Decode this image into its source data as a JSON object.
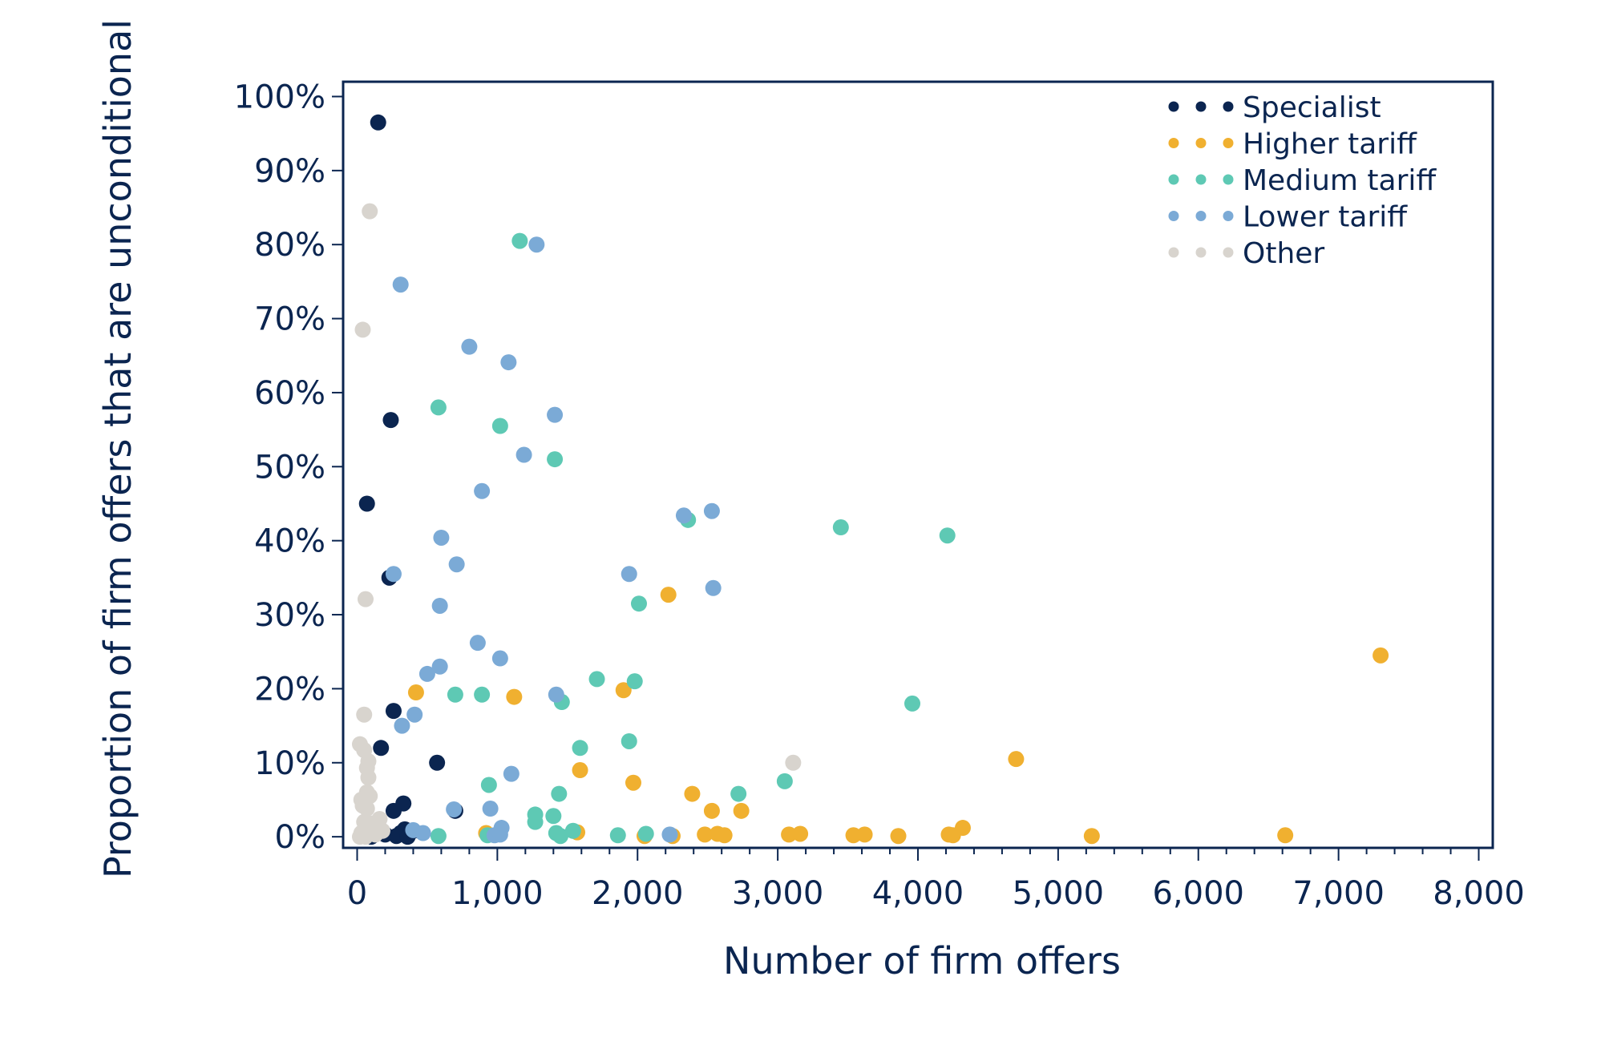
{
  "chart_data": {
    "type": "scatter",
    "xlabel": "Number of firm offers",
    "ylabel": "Proportion of firm offers that are unconditional",
    "xlim": [
      -100,
      8100
    ],
    "ylim": [
      -1.5,
      102
    ],
    "x_ticks": [
      0,
      1000,
      2000,
      3000,
      4000,
      5000,
      6000,
      7000,
      8000
    ],
    "x_tick_labels": [
      "0",
      "1,000",
      "2,000",
      "3,000",
      "4,000",
      "5,000",
      "6,000",
      "7,000",
      "8,000"
    ],
    "y_ticks": [
      0,
      10,
      20,
      30,
      40,
      50,
      60,
      70,
      80,
      90,
      100
    ],
    "y_tick_labels": [
      "0%",
      "10%",
      "20%",
      "30%",
      "40%",
      "50%",
      "60%",
      "70%",
      "80%",
      "90%",
      "100%"
    ],
    "x_minor_step": 200,
    "grid": false,
    "legend_position": "top-right",
    "series": [
      {
        "name": "Specialist",
        "color": "#0b2550",
        "points": [
          [
            150,
            96.5
          ],
          [
            240,
            56.3
          ],
          [
            70,
            45
          ],
          [
            230,
            35
          ],
          [
            260,
            17
          ],
          [
            170,
            12
          ],
          [
            570,
            10
          ],
          [
            330,
            4.5
          ],
          [
            260,
            3.5
          ],
          [
            700,
            3.5
          ],
          [
            150,
            2
          ],
          [
            340,
            1
          ],
          [
            400,
            0.8
          ],
          [
            310,
            0.5
          ],
          [
            200,
            0.3
          ],
          [
            280,
            0.1
          ],
          [
            100,
            0
          ],
          [
            360,
            0
          ]
        ]
      },
      {
        "name": "Higher tariff",
        "color": "#f0b030",
        "points": [
          [
            7300,
            24.5
          ],
          [
            2220,
            32.7
          ],
          [
            420,
            19.5
          ],
          [
            1120,
            18.9
          ],
          [
            1900,
            19.8
          ],
          [
            4700,
            10.5
          ],
          [
            1590,
            9
          ],
          [
            1970,
            7.3
          ],
          [
            2390,
            5.8
          ],
          [
            2530,
            3.5
          ],
          [
            2740,
            3.5
          ],
          [
            4320,
            1.2
          ],
          [
            3160,
            0.4
          ],
          [
            3080,
            0.3
          ],
          [
            3620,
            0.3
          ],
          [
            3540,
            0.2
          ],
          [
            2570,
            0.4
          ],
          [
            2620,
            0.2
          ],
          [
            2480,
            0.3
          ],
          [
            2250,
            0.1
          ],
          [
            2050,
            0.1
          ],
          [
            1570,
            0.6
          ],
          [
            920,
            0.5
          ],
          [
            3860,
            0.1
          ],
          [
            4250,
            0.2
          ],
          [
            4220,
            0.3
          ],
          [
            5240,
            0.1
          ],
          [
            6620,
            0.2
          ]
        ]
      },
      {
        "name": "Medium tariff",
        "color": "#5ec9b4",
        "points": [
          [
            1160,
            80.5
          ],
          [
            580,
            58
          ],
          [
            1020,
            55.5
          ],
          [
            1410,
            51
          ],
          [
            3450,
            41.8
          ],
          [
            4210,
            40.7
          ],
          [
            2360,
            42.8
          ],
          [
            2010,
            31.5
          ],
          [
            1710,
            21.3
          ],
          [
            1980,
            21
          ],
          [
            700,
            19.2
          ],
          [
            890,
            19.2
          ],
          [
            3960,
            18
          ],
          [
            1460,
            18.2
          ],
          [
            1590,
            12
          ],
          [
            1940,
            12.9
          ],
          [
            3050,
            7.5
          ],
          [
            2720,
            5.8
          ],
          [
            940,
            7
          ],
          [
            1440,
            5.8
          ],
          [
            1270,
            3
          ],
          [
            1400,
            2.8
          ],
          [
            1270,
            2
          ],
          [
            1540,
            0.8
          ],
          [
            1420,
            0.5
          ],
          [
            1450,
            0.1
          ],
          [
            2060,
            0.4
          ],
          [
            1860,
            0.2
          ],
          [
            580,
            0.1
          ],
          [
            930,
            0.2
          ]
        ]
      },
      {
        "name": "Lower tariff",
        "color": "#7baad6",
        "points": [
          [
            1280,
            80
          ],
          [
            310,
            74.6
          ],
          [
            800,
            66.2
          ],
          [
            1080,
            64.1
          ],
          [
            1410,
            57
          ],
          [
            1190,
            51.6
          ],
          [
            890,
            46.7
          ],
          [
            2330,
            43.4
          ],
          [
            2530,
            44
          ],
          [
            600,
            40.4
          ],
          [
            710,
            36.8
          ],
          [
            260,
            35.5
          ],
          [
            1940,
            35.5
          ],
          [
            2540,
            33.6
          ],
          [
            590,
            31.2
          ],
          [
            860,
            26.2
          ],
          [
            1020,
            24.1
          ],
          [
            590,
            23
          ],
          [
            500,
            22
          ],
          [
            1420,
            19.2
          ],
          [
            410,
            16.5
          ],
          [
            320,
            15
          ],
          [
            1100,
            8.5
          ],
          [
            690,
            3.7
          ],
          [
            950,
            3.8
          ],
          [
            1030,
            1.2
          ],
          [
            400,
            0.9
          ],
          [
            470,
            0.5
          ],
          [
            2230,
            0.3
          ],
          [
            980,
            0.2
          ],
          [
            1020,
            0.3
          ]
        ]
      },
      {
        "name": "Other",
        "color": "#d8d4ce",
        "points": [
          [
            90,
            84.5
          ],
          [
            40,
            68.5
          ],
          [
            60,
            32.1
          ],
          [
            50,
            16.5
          ],
          [
            20,
            12.5
          ],
          [
            50,
            11.7
          ],
          [
            80,
            10.2
          ],
          [
            70,
            9.3
          ],
          [
            80,
            8
          ],
          [
            30,
            5
          ],
          [
            70,
            6
          ],
          [
            90,
            5.5
          ],
          [
            40,
            4.2
          ],
          [
            70,
            3.8
          ],
          [
            160,
            2.4
          ],
          [
            50,
            2
          ],
          [
            110,
            1.8
          ],
          [
            180,
            0.8
          ],
          [
            30,
            0.5
          ],
          [
            130,
            0.3
          ],
          [
            3110,
            10
          ],
          [
            20,
            0
          ],
          [
            60,
            0
          ],
          [
            90,
            0.8
          ]
        ]
      }
    ]
  }
}
